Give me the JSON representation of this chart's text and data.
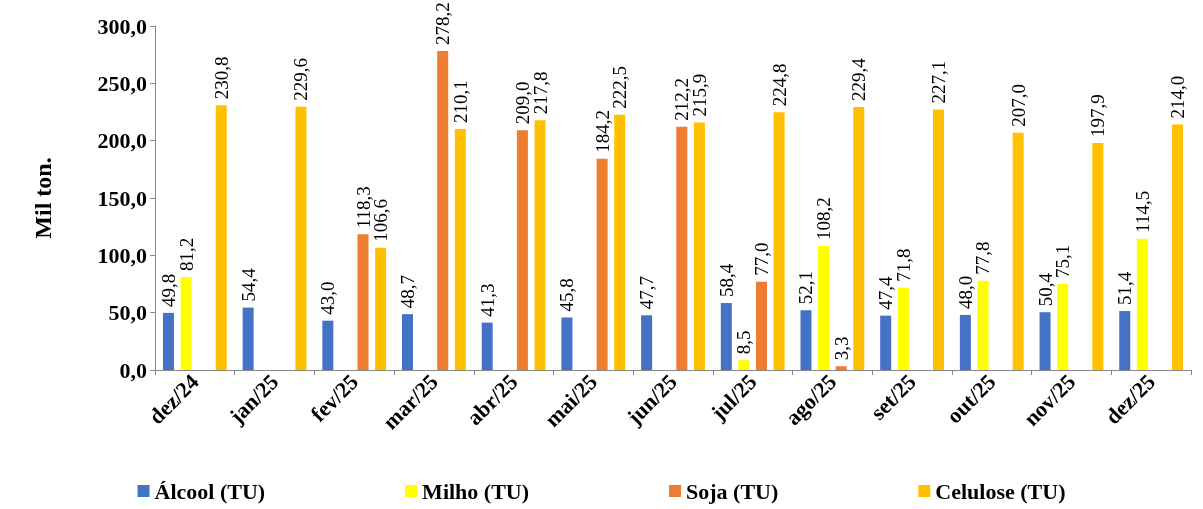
{
  "chart_data": {
    "type": "bar",
    "ylabel": "Mil ton.",
    "categories": [
      "dez/24",
      "jan/25",
      "fev/25",
      "mar/25",
      "abr/25",
      "mai/25",
      "jun/25",
      "jul/25",
      "ago/25",
      "set/25",
      "out/25",
      "nov/25",
      "dez/25"
    ],
    "series": [
      {
        "name": "Álcool (TU)",
        "color": "#4472c4",
        "values": [
          49.8,
          54.4,
          43.0,
          48.7,
          41.3,
          45.8,
          47.7,
          58.4,
          52.1,
          47.4,
          48.0,
          50.4,
          51.4
        ],
        "value_labels": [
          "49,8",
          "54,4",
          "43,0",
          "48,7",
          "41,3",
          "45,8",
          "47,7",
          "58,4",
          "52,1",
          "47,4",
          "48,0",
          "50,4",
          "51,4"
        ]
      },
      {
        "name": "Milho (TU)",
        "color": "#ffff00",
        "values": [
          81.2,
          null,
          null,
          null,
          null,
          null,
          null,
          8.5,
          108.2,
          71.8,
          77.8,
          75.1,
          114.5
        ],
        "value_labels": [
          "81,2",
          null,
          null,
          null,
          null,
          null,
          null,
          "8,5",
          "108,2",
          "71,8",
          "77,8",
          "75,1",
          "114,5"
        ]
      },
      {
        "name": "Soja (TU)",
        "color": "#ed7d31",
        "values": [
          null,
          null,
          118.3,
          278.2,
          209.0,
          184.2,
          212.2,
          77.0,
          3.3,
          null,
          null,
          null,
          null
        ],
        "value_labels": [
          null,
          null,
          "118,3",
          "278,2",
          "209,0",
          "184,2",
          "212,2",
          "77,0",
          "3,3",
          null,
          null,
          null,
          null
        ]
      },
      {
        "name": "Celulose (TU)",
        "color": "#ffc000",
        "values": [
          230.8,
          229.6,
          106.6,
          210.1,
          217.8,
          222.5,
          215.9,
          224.8,
          229.4,
          227.1,
          207.0,
          197.9,
          214.0
        ],
        "value_labels": [
          "230,8",
          "229,6",
          "106,6",
          "210,1",
          "217,8",
          "222,5",
          "215,9",
          "224,8",
          "229,4",
          "227,1",
          "207,0",
          "197,9",
          "214,0"
        ]
      }
    ],
    "ylim": [
      0,
      300
    ],
    "yticks": [
      {
        "value": 0,
        "label": "0,0"
      },
      {
        "value": 50,
        "label": "50,0"
      },
      {
        "value": 100,
        "label": "100,0"
      },
      {
        "value": 150,
        "label": "150,0"
      },
      {
        "value": 200,
        "label": "200,0"
      },
      {
        "value": 250,
        "label": "250,0"
      },
      {
        "value": 300,
        "label": "300,0"
      }
    ],
    "grid": false,
    "legend": "bottom"
  }
}
